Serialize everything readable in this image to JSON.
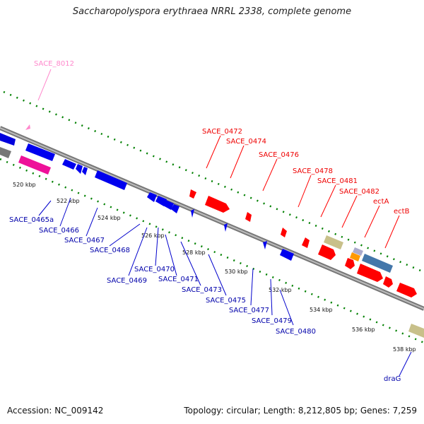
{
  "title": "Saccharopolyspora erythraea NRRL 2338, complete genome",
  "footer": {
    "accession": "Accession: NC_009142",
    "summary": "Topology: circular; Length: 8,212,805 bp; Genes: 7,259"
  },
  "colors": {
    "forward_gene": "#ff0000",
    "reverse_gene": "#0000ff",
    "backbone": "#888888",
    "ticks": "#008000",
    "pseudo": "#ff77bb",
    "other_gene": "#c8c08a"
  },
  "ticks": [
    "520 kbp",
    "522 kbp",
    "524 kbp",
    "526 kbp",
    "528 kbp",
    "530 kbp",
    "532 kbp",
    "534 kbp",
    "536 kbp",
    "538 kbp"
  ],
  "labels_top": [
    "SACE_8012",
    "SACE_0472",
    "SACE_0474",
    "SACE_0476",
    "SACE_0478",
    "SACE_0481",
    "SACE_0482",
    "ectA",
    "ectB"
  ],
  "labels_bottom": [
    "SACE_0465a",
    "SACE_0466",
    "SACE_0467",
    "SACE_0468",
    "SACE_0469",
    "SACE_0470",
    "SACE_0471",
    "SACE_0473",
    "SACE_0475",
    "SACE_0477",
    "SACE_0479",
    "SACE_0480",
    "draG"
  ]
}
